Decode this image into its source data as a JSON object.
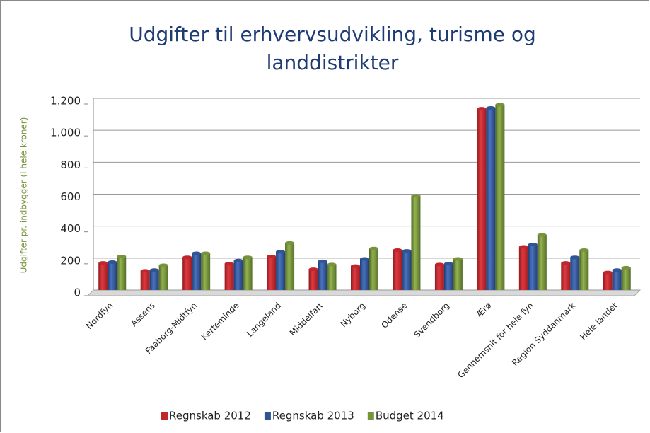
{
  "chart_data": {
    "type": "bar",
    "title": [
      "Udgifter til erhvervsudvikling, turisme og",
      "landdistrikter"
    ],
    "y_label": "Udgifter pr. indbygger (i hele kroner)",
    "categories": [
      "Nordfyn",
      "Assens",
      "Faaborg-Midtfyn",
      "Kerteminde",
      "Langeland",
      "Middelfart",
      "Nyborg",
      "Odense",
      "Svendborg",
      "Ærø",
      "Gennemsnit for hele fyn",
      "Region Syddanmark",
      "Hele landet"
    ],
    "series": [
      {
        "name": "Regnskab 2012",
        "color": "#c0272d",
        "values": [
          170,
          120,
          205,
          165,
          210,
          130,
          150,
          250,
          160,
          1135,
          270,
          170,
          110
        ]
      },
      {
        "name": "Regnskab 2013",
        "color": "#2f5597",
        "values": [
          175,
          125,
          230,
          185,
          240,
          180,
          195,
          245,
          165,
          1140,
          285,
          205,
          125
        ]
      },
      {
        "name": "Budget 2014",
        "color": "#77933c",
        "values": [
          210,
          155,
          230,
          205,
          295,
          160,
          260,
          590,
          195,
          1160,
          345,
          250,
          140
        ]
      }
    ],
    "ylim": [
      0,
      1200
    ],
    "yticks": [
      0,
      200,
      400,
      600,
      800,
      {
        "value": 1000,
        "label": "1.000"
      },
      {
        "value": 1200,
        "label": "1.200"
      }
    ],
    "grid": true,
    "legend": "bottom"
  }
}
